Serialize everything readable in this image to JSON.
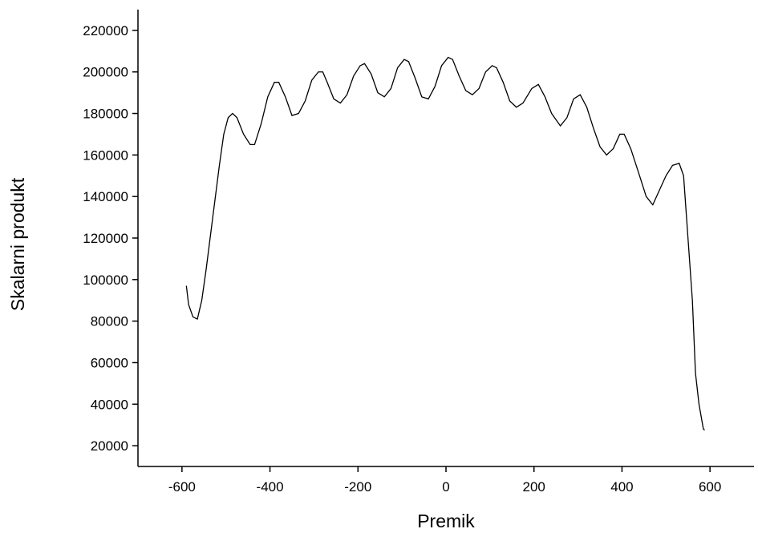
{
  "chart_data": {
    "type": "line",
    "x_label": "Premik",
    "y_label": "Skalarni produkt",
    "xlim": [
      -700,
      700
    ],
    "ylim": [
      10000,
      230000
    ],
    "xticks": [
      -600,
      -400,
      -200,
      0,
      200,
      400,
      600
    ],
    "yticks": [
      20000,
      40000,
      60000,
      80000,
      100000,
      120000,
      140000,
      160000,
      180000,
      200000,
      220000
    ],
    "grid": false,
    "x": [
      -590,
      -585,
      -575,
      -565,
      -555,
      -545,
      -530,
      -515,
      -505,
      -495,
      -485,
      -475,
      -460,
      -445,
      -435,
      -420,
      -405,
      -390,
      -380,
      -365,
      -350,
      -335,
      -320,
      -305,
      -290,
      -280,
      -270,
      -255,
      -240,
      -225,
      -210,
      -195,
      -185,
      -170,
      -155,
      -140,
      -125,
      -110,
      -95,
      -85,
      -70,
      -55,
      -40,
      -25,
      -10,
      5,
      15,
      30,
      45,
      60,
      75,
      90,
      105,
      115,
      130,
      145,
      160,
      175,
      195,
      210,
      225,
      240,
      260,
      275,
      290,
      305,
      320,
      335,
      350,
      365,
      380,
      395,
      405,
      420,
      440,
      455,
      470,
      485,
      500,
      515,
      530,
      540,
      550,
      560,
      567,
      575,
      585,
      588
    ],
    "series": [
      {
        "color": "#000000",
        "values": [
          97000,
          88000,
          82000,
          81000,
          90000,
          105000,
          130000,
          155000,
          170000,
          178000,
          180000,
          178000,
          170000,
          165000,
          165000,
          175000,
          188000,
          195000,
          195000,
          188000,
          179000,
          180000,
          186000,
          196000,
          200000,
          200000,
          195000,
          187000,
          185000,
          189000,
          198000,
          203000,
          204000,
          199000,
          190000,
          188000,
          192000,
          202000,
          206000,
          205000,
          197000,
          188000,
          187000,
          193000,
          203000,
          207000,
          206000,
          198000,
          191000,
          189000,
          192000,
          200000,
          203000,
          202000,
          195000,
          186000,
          183000,
          185000,
          192000,
          194000,
          188000,
          180000,
          174000,
          178000,
          187000,
          189000,
          183000,
          173000,
          164000,
          160000,
          163000,
          170000,
          170000,
          163000,
          150000,
          140000,
          136000,
          143000,
          150000,
          155000,
          156000,
          150000,
          120000,
          90000,
          55000,
          40000,
          28000,
          27500
        ]
      }
    ]
  }
}
